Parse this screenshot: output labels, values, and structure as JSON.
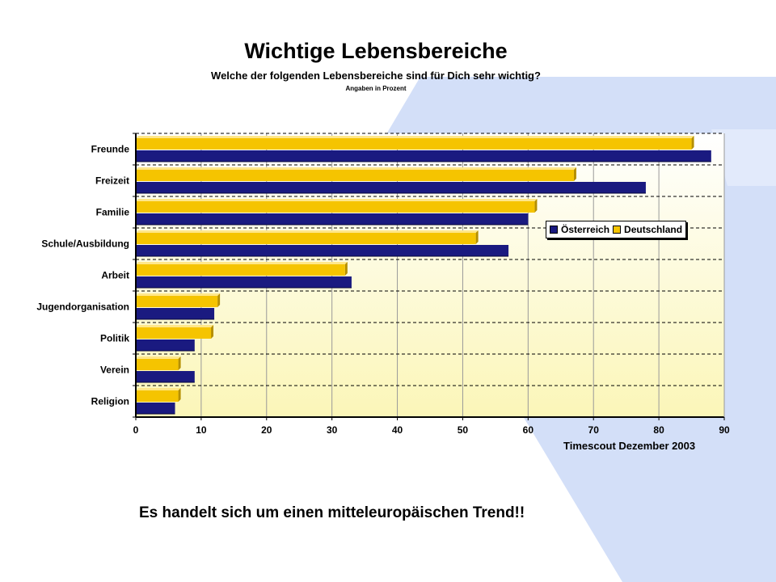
{
  "title": "Wichtige Lebensbereiche",
  "subtitle": "Welche der folgenden Lebensbereiche sind für Dich sehr wichtig?",
  "note": "Angaben in Prozent",
  "source": "Timescout Dezember 2003",
  "footer": "Es handelt sich um einen mitteleuropäischen Trend!!",
  "colors": {
    "austria": "#1a1a80",
    "germany": "#f5c400",
    "germany_top": "#ffe78a",
    "plot_top": "#ffffff",
    "plot_bottom": "#fbf6b8",
    "bg_shape": "#cfdcf7",
    "bg_shape_light": "#dde7fa"
  },
  "chart_data": {
    "type": "bar",
    "orientation": "horizontal",
    "categories": [
      "Freunde",
      "Freizeit",
      "Familie",
      "Schule/Ausbildung",
      "Arbeit",
      "Jugendorganisation",
      "Politik",
      "Verein",
      "Religion"
    ],
    "series": [
      {
        "name": "Deutschland",
        "values": [
          85,
          67,
          61,
          52,
          32,
          12.5,
          11.5,
          6.5,
          6.5
        ]
      },
      {
        "name": "Österreich",
        "values": [
          88,
          78,
          60,
          57,
          33,
          12,
          9,
          9,
          6
        ]
      }
    ],
    "xlim": [
      0,
      90
    ],
    "xticks": [
      0,
      10,
      20,
      30,
      40,
      50,
      60,
      70,
      80,
      90
    ],
    "grid": true,
    "legend_position": "right"
  }
}
